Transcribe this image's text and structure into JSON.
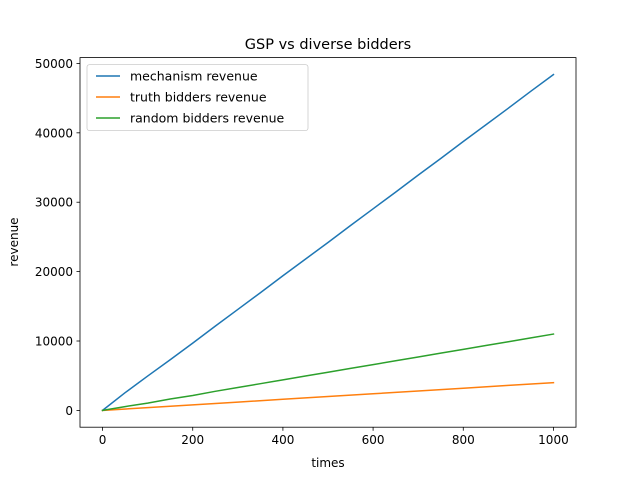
{
  "chart_data": {
    "type": "line",
    "title": "GSP vs diverse bidders",
    "xlabel": "times",
    "ylabel": "revenue",
    "xlim": [
      -50,
      1050
    ],
    "ylim": [
      -2421,
      50841
    ],
    "xticks": [
      0,
      200,
      400,
      600,
      800,
      1000
    ],
    "yticks": [
      0,
      10000,
      20000,
      30000,
      40000,
      50000
    ],
    "grid": false,
    "legend_position": "top-left",
    "series": [
      {
        "name": "mechanism revenue",
        "color": "#1f77b4",
        "x": [
          0,
          50,
          100,
          150,
          200,
          250,
          300,
          350,
          400,
          450,
          500,
          550,
          600,
          650,
          700,
          750,
          800,
          850,
          900,
          950,
          1000
        ],
        "y": [
          0,
          2550,
          4950,
          7300,
          9700,
          12150,
          14550,
          16950,
          19400,
          21800,
          24200,
          26650,
          29050,
          31450,
          33900,
          36300,
          38750,
          41150,
          43550,
          46000,
          48400
        ]
      },
      {
        "name": "truth bidders revenue",
        "color": "#ff7f0e",
        "x": [
          0,
          100,
          200,
          300,
          400,
          500,
          600,
          700,
          800,
          900,
          1000
        ],
        "y": [
          0,
          400,
          800,
          1200,
          1600,
          2000,
          2400,
          2800,
          3200,
          3600,
          4000
        ]
      },
      {
        "name": "random bidders revenue",
        "color": "#2ca02c",
        "x": [
          0,
          50,
          100,
          150,
          200,
          250,
          300,
          350,
          400,
          450,
          500,
          550,
          600,
          650,
          700,
          750,
          800,
          850,
          900,
          950,
          1000
        ],
        "y": [
          0,
          550,
          1050,
          1650,
          2150,
          2750,
          3300,
          3850,
          4400,
          4950,
          5500,
          6050,
          6600,
          7150,
          7700,
          8250,
          8800,
          9350,
          9900,
          10450,
          11000
        ]
      }
    ]
  }
}
